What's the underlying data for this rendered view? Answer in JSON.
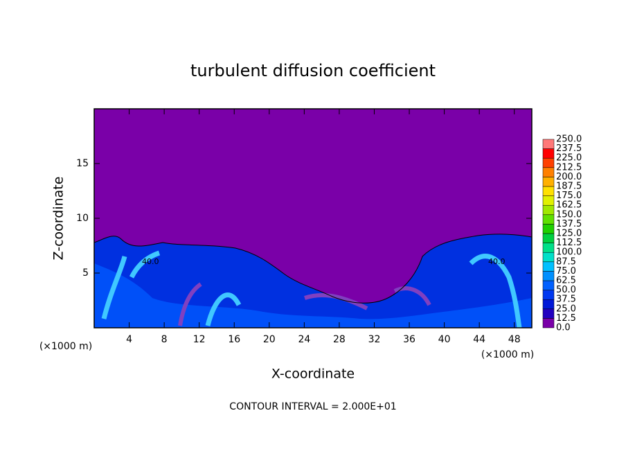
{
  "chart_data": {
    "type": "contour",
    "title": "turbulent diffusion coefficient",
    "x_label": "X-coordinate",
    "y_label": "Z-coordinate",
    "x_unit_left": "(×1000 m)",
    "x_unit_right": "(×1000 m)",
    "footer": "CONTOUR INTERVAL = 2.000E+01",
    "contour_labels": [
      "40.0",
      "40.0"
    ],
    "xlim": [
      0,
      50
    ],
    "xticks": [
      4,
      8,
      12,
      16,
      20,
      24,
      28,
      32,
      36,
      40,
      44,
      48
    ],
    "ylim": [
      0,
      20
    ],
    "yticks": [
      5,
      10,
      15
    ],
    "colorbar": {
      "levels": [
        {
          "value": 0,
          "label": "0.0"
        },
        {
          "value": 12.5,
          "label": "12.5"
        },
        {
          "value": 25,
          "label": "25.0"
        },
        {
          "value": 37.5,
          "label": "37.5"
        },
        {
          "value": 50,
          "label": "50.0"
        },
        {
          "value": 62.5,
          "label": "62.5"
        },
        {
          "value": 75,
          "label": "75.0"
        },
        {
          "value": 87.5,
          "label": "87.5"
        },
        {
          "value": 100,
          "label": "100.0"
        },
        {
          "value": 112.5,
          "label": "112.5"
        },
        {
          "value": 125,
          "label": "125.0"
        },
        {
          "value": 137.5,
          "label": "137.5"
        },
        {
          "value": 150,
          "label": "150.0"
        },
        {
          "value": 162.5,
          "label": "162.5"
        },
        {
          "value": 175,
          "label": "175.0"
        },
        {
          "value": 187.5,
          "label": "187.5"
        },
        {
          "value": 200,
          "label": "200.0"
        },
        {
          "value": 212.5,
          "label": "212.5"
        },
        {
          "value": 225,
          "label": "225.0"
        },
        {
          "value": 237.5,
          "label": "237.5"
        },
        {
          "value": 250,
          "label": "250.0"
        }
      ],
      "colors": [
        "#7a00a8",
        "#2200c0",
        "#0018d8",
        "#0038f0",
        "#0060ff",
        "#0090ff",
        "#00c0ff",
        "#00e0c8",
        "#00e088",
        "#00d040",
        "#20d000",
        "#60e000",
        "#a0e800",
        "#e0f000",
        "#ffe000",
        "#ffb000",
        "#ff8000",
        "#ff4000",
        "#ff0000",
        "#ff7878"
      ]
    }
  }
}
